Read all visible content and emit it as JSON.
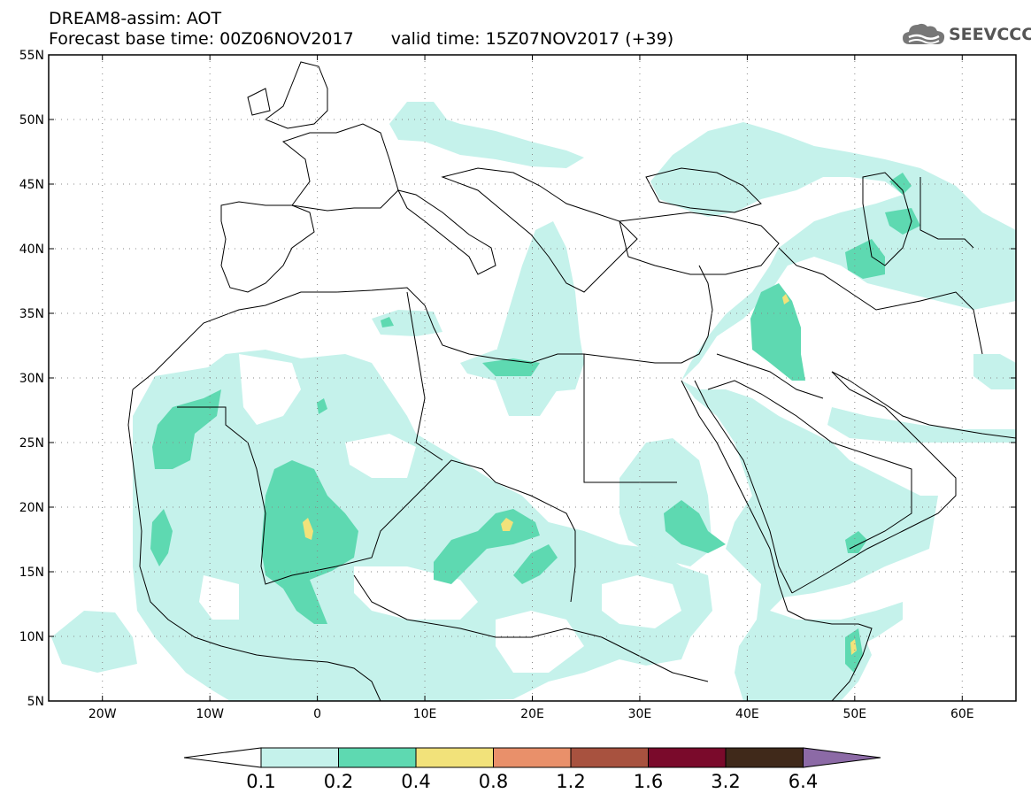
{
  "header": {
    "title_line1": "DREAM8-assim: AOT",
    "base_time": "Forecast base time: 00Z06NOV2017",
    "valid_time": "valid time: 15Z07NOV2017 (+39)"
  },
  "logo": {
    "text": "SEEVCCC",
    "icon": "cloud-icon"
  },
  "map": {
    "lon_range": [
      -25,
      65
    ],
    "lat_range": [
      5,
      55
    ],
    "lat_labels": [
      "55N",
      "50N",
      "45N",
      "40N",
      "35N",
      "30N",
      "25N",
      "20N",
      "15N",
      "10N",
      "5N"
    ],
    "lat_values": [
      55,
      50,
      45,
      40,
      35,
      30,
      25,
      20,
      15,
      10,
      5
    ],
    "lon_labels": [
      "20W",
      "10W",
      "0",
      "10E",
      "20E",
      "30E",
      "40E",
      "50E",
      "60E"
    ],
    "lon_values": [
      -20,
      -10,
      0,
      10,
      20,
      30,
      40,
      50,
      60
    ],
    "grid": true
  },
  "colorbar": {
    "levels": [
      "0.1",
      "0.2",
      "0.4",
      "0.8",
      "1.2",
      "1.6",
      "3.2",
      "6.4"
    ],
    "colors": [
      "#ffffff",
      "#c5f2eb",
      "#5ed9b1",
      "#f2e27a",
      "#e9906a",
      "#a8523f",
      "#7a0a2b",
      "#40291a",
      "#8c6aa6"
    ]
  }
}
